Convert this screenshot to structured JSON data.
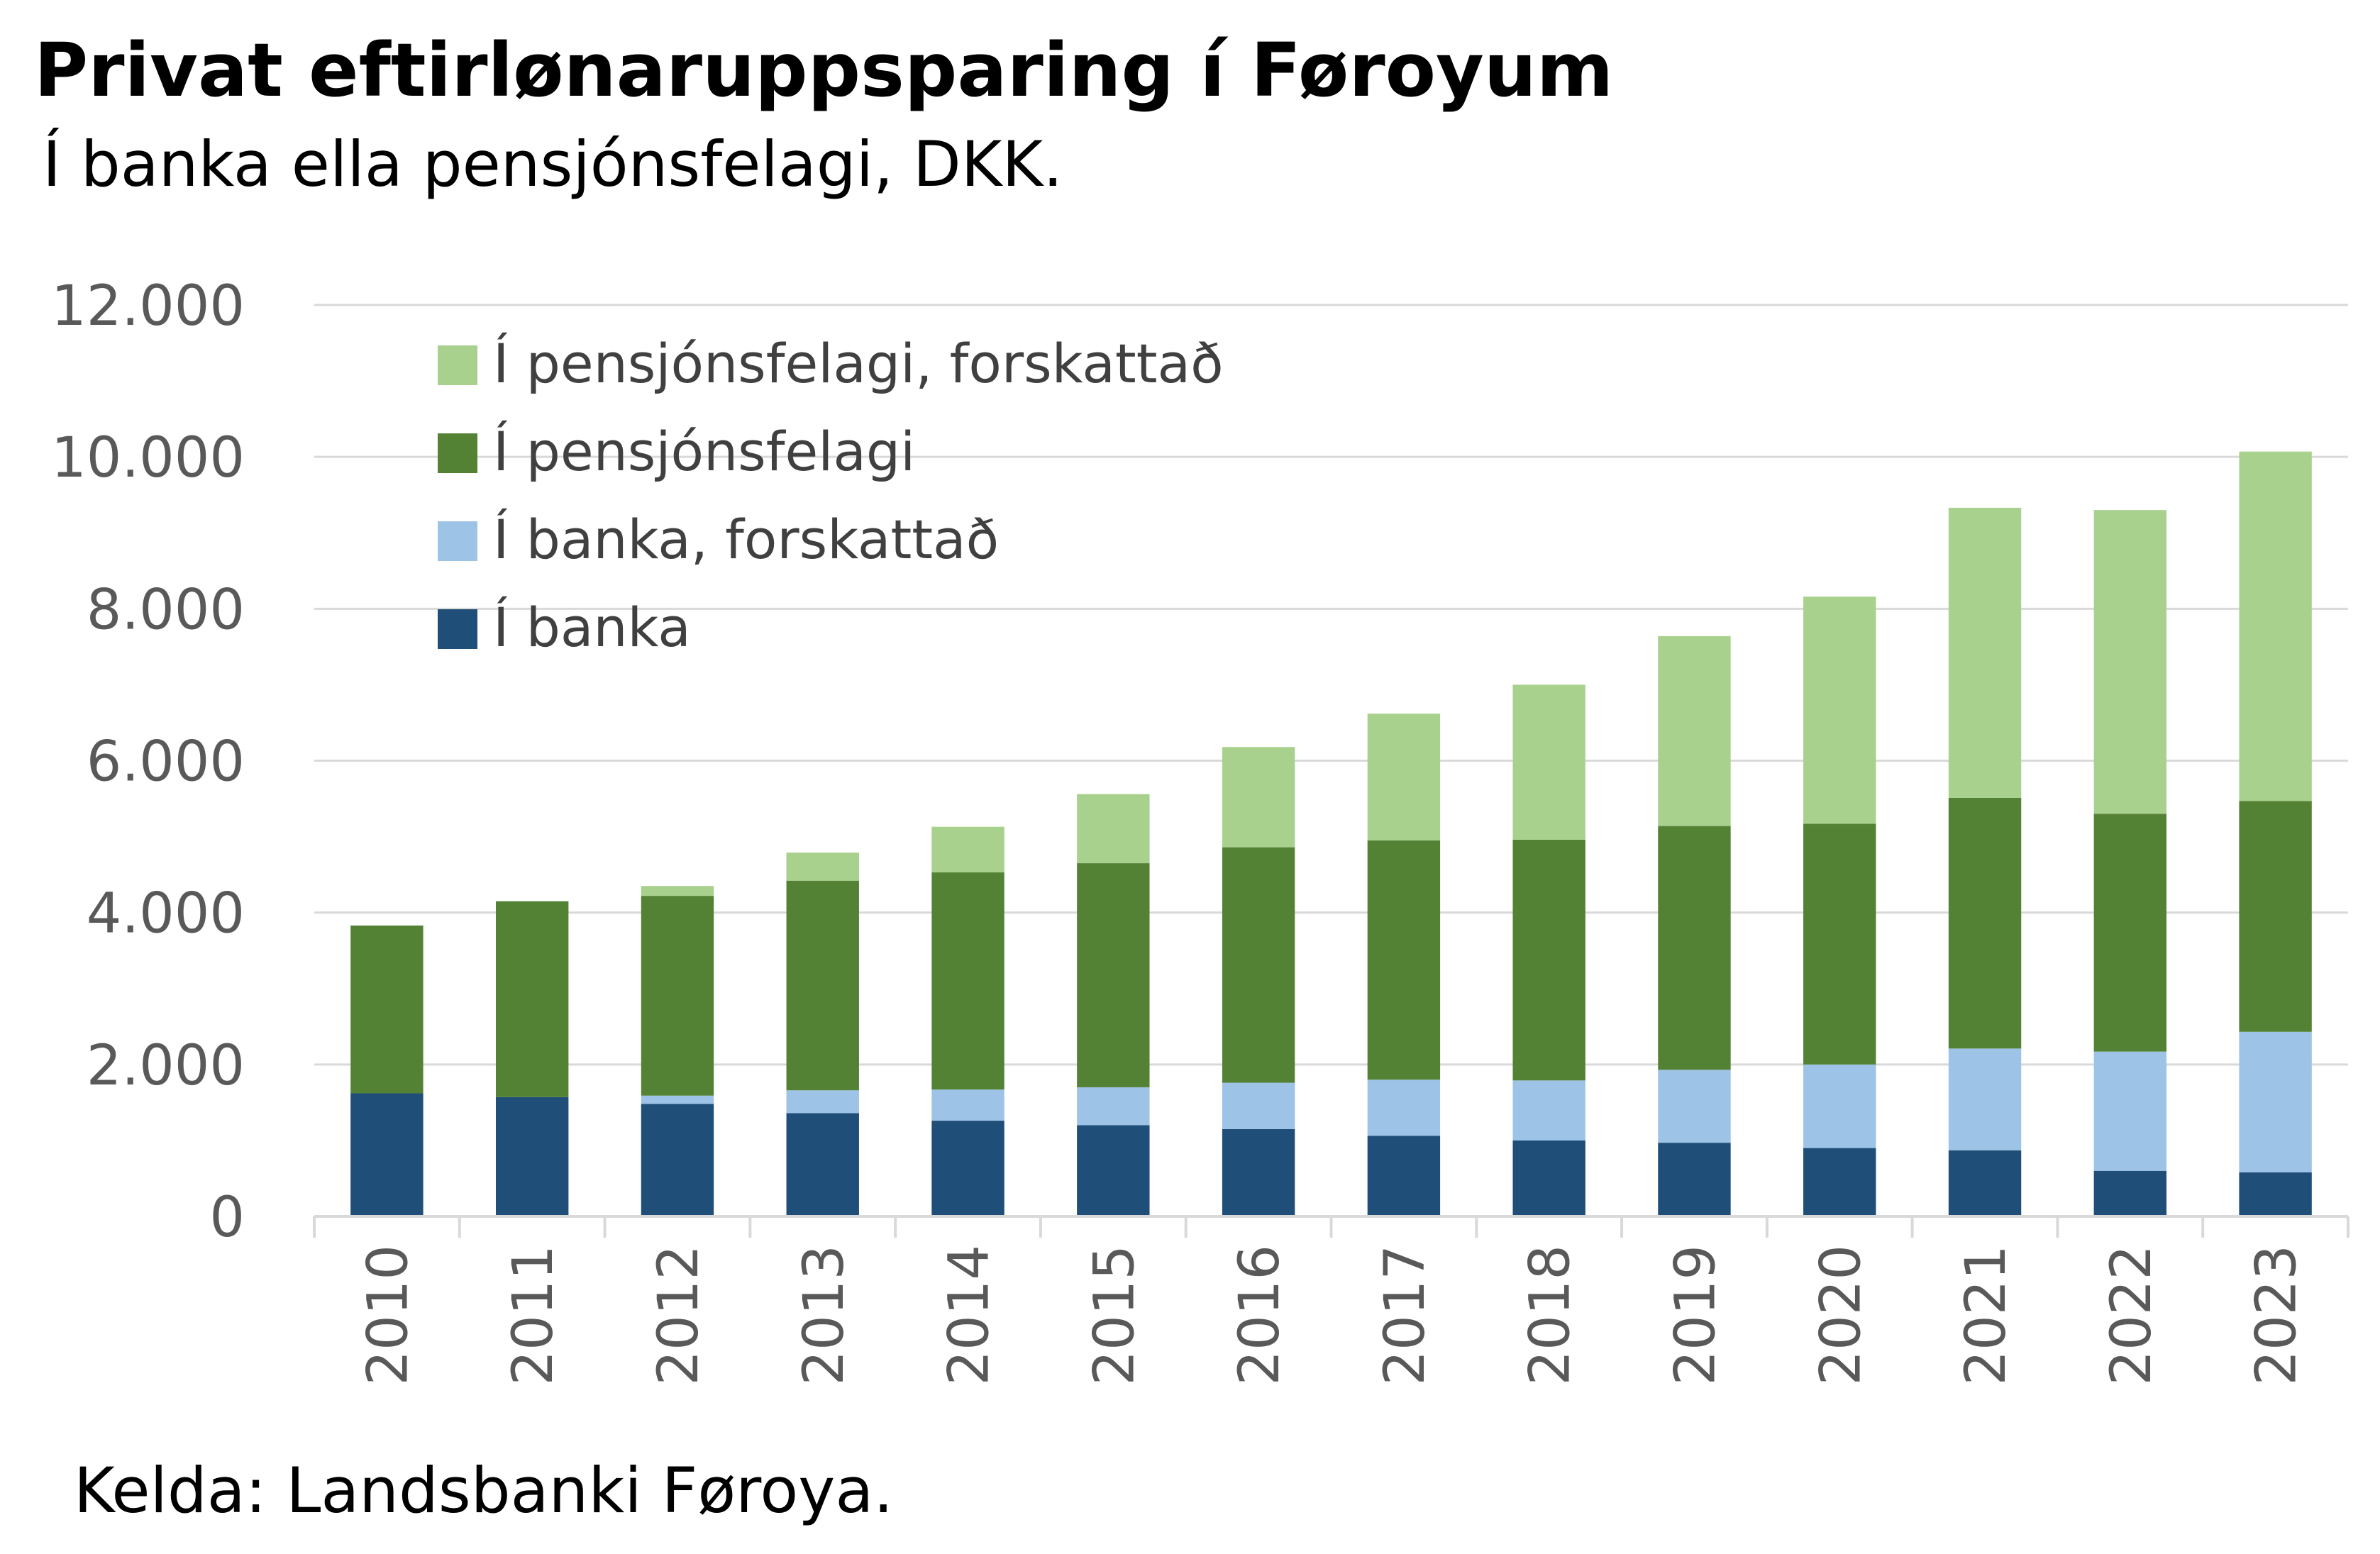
{
  "title": "Privat eftirlønaruppsparing í Føroyum",
  "subtitle": "Í banka ella pensjónsfelagi, DKK.",
  "source": "Kelda: Landsbanki Føroya.",
  "chart_data": {
    "type": "bar",
    "stacked": true,
    "categories": [
      "2010",
      "2011",
      "2012",
      "2013",
      "2014",
      "2015",
      "2016",
      "2017",
      "2018",
      "2019",
      "2020",
      "2021",
      "2022",
      "2023"
    ],
    "series": [
      {
        "name": "Í banka",
        "color": "#1f4e79",
        "values": [
          1620,
          1570,
          1480,
          1360,
          1260,
          1200,
          1150,
          1060,
          1000,
          970,
          900,
          870,
          600,
          580
        ]
      },
      {
        "name": "Í banka, forskattað",
        "color": "#9dc3e6",
        "values": [
          0,
          0,
          110,
          300,
          410,
          500,
          610,
          740,
          790,
          960,
          1100,
          1340,
          1570,
          1850
        ]
      },
      {
        "name": "Í pensjónsfelagi",
        "color": "#548235",
        "values": [
          2210,
          2580,
          2630,
          2760,
          2860,
          2950,
          3100,
          3150,
          3170,
          3210,
          3170,
          3300,
          3130,
          3040
        ]
      },
      {
        "name": "Í pensjónsfelagi, forskattað",
        "color": "#a9d18e",
        "values": [
          0,
          0,
          130,
          370,
          600,
          910,
          1320,
          1670,
          2040,
          2500,
          2990,
          3820,
          4000,
          4600
        ]
      }
    ],
    "ylim": [
      0,
      12000
    ],
    "yticks": [
      "0",
      "2.000",
      "4.000",
      "6.000",
      "8.000",
      "10.000",
      "12.000"
    ],
    "ytick_values": [
      0,
      2000,
      4000,
      6000,
      8000,
      10000,
      12000
    ],
    "xlabel": "",
    "ylabel": "",
    "grid": true,
    "legend_position": "top-left",
    "legend_order": [
      "Í pensjónsfelagi, forskattað",
      "Í pensjónsfelagi",
      "Í banka, forskattað",
      "Í banka"
    ],
    "x_tick_rotation": "vertical"
  }
}
